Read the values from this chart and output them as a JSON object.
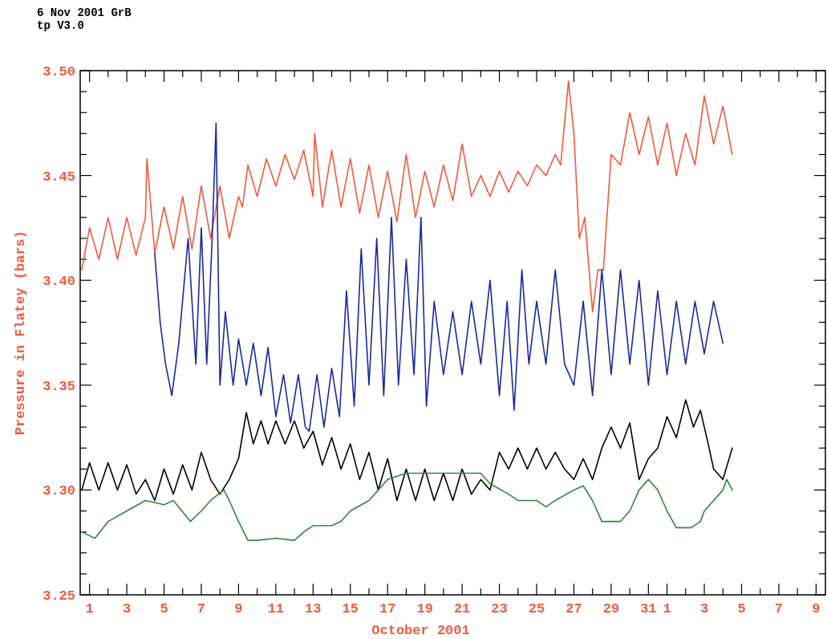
{
  "chart_data": {
    "type": "line",
    "annotations": [
      "6 Nov 2001 GrB",
      "tp V3.0"
    ],
    "xlabel": "October 2001",
    "ylabel": "Pressure in Flatey (bars)",
    "xlim": [
      "2001-09-30T12:00",
      "2001-11-09T12:00"
    ],
    "ylim": [
      3.25,
      3.5
    ],
    "xticks": [
      {
        "value": "2001-10-01",
        "label": "1"
      },
      {
        "value": "2001-10-02",
        "label": null
      },
      {
        "value": "2001-10-03",
        "label": "3"
      },
      {
        "value": "2001-10-04",
        "label": null
      },
      {
        "value": "2001-10-05",
        "label": "5"
      },
      {
        "value": "2001-10-06",
        "label": null
      },
      {
        "value": "2001-10-07",
        "label": "7"
      },
      {
        "value": "2001-10-08",
        "label": null
      },
      {
        "value": "2001-10-09",
        "label": "9"
      },
      {
        "value": "2001-10-10",
        "label": null
      },
      {
        "value": "2001-10-11",
        "label": "11"
      },
      {
        "value": "2001-10-12",
        "label": null
      },
      {
        "value": "2001-10-13",
        "label": "13"
      },
      {
        "value": "2001-10-14",
        "label": null
      },
      {
        "value": "2001-10-15",
        "label": "15"
      },
      {
        "value": "2001-10-16",
        "label": null
      },
      {
        "value": "2001-10-17",
        "label": "17"
      },
      {
        "value": "2001-10-18",
        "label": null
      },
      {
        "value": "2001-10-19",
        "label": "19"
      },
      {
        "value": "2001-10-20",
        "label": null
      },
      {
        "value": "2001-10-21",
        "label": "21"
      },
      {
        "value": "2001-10-22",
        "label": null
      },
      {
        "value": "2001-10-23",
        "label": "23"
      },
      {
        "value": "2001-10-24",
        "label": null
      },
      {
        "value": "2001-10-25",
        "label": "25"
      },
      {
        "value": "2001-10-26",
        "label": null
      },
      {
        "value": "2001-10-27",
        "label": "27"
      },
      {
        "value": "2001-10-28",
        "label": null
      },
      {
        "value": "2001-10-29",
        "label": "29"
      },
      {
        "value": "2001-10-30",
        "label": null
      },
      {
        "value": "2001-10-31",
        "label": "31"
      },
      {
        "value": "2001-11-01",
        "label": "1"
      },
      {
        "value": "2001-11-02",
        "label": null
      },
      {
        "value": "2001-11-03",
        "label": "3"
      },
      {
        "value": "2001-11-04",
        "label": null
      },
      {
        "value": "2001-11-05",
        "label": "5"
      },
      {
        "value": "2001-11-06",
        "label": null
      },
      {
        "value": "2001-11-07",
        "label": "7"
      },
      {
        "value": "2001-11-08",
        "label": null
      },
      {
        "value": "2001-11-09",
        "label": "9"
      }
    ],
    "yticks": [
      {
        "value": 3.25,
        "label": "3.25"
      },
      {
        "value": 3.26,
        "label": null
      },
      {
        "value": 3.27,
        "label": null
      },
      {
        "value": 3.28,
        "label": null
      },
      {
        "value": 3.29,
        "label": null
      },
      {
        "value": 3.3,
        "label": "3.30"
      },
      {
        "value": 3.31,
        "label": null
      },
      {
        "value": 3.32,
        "label": null
      },
      {
        "value": 3.33,
        "label": null
      },
      {
        "value": 3.34,
        "label": null
      },
      {
        "value": 3.35,
        "label": "3.35"
      },
      {
        "value": 3.36,
        "label": null
      },
      {
        "value": 3.37,
        "label": null
      },
      {
        "value": 3.38,
        "label": null
      },
      {
        "value": 3.39,
        "label": null
      },
      {
        "value": 3.4,
        "label": "3.40"
      },
      {
        "value": 3.41,
        "label": null
      },
      {
        "value": 3.42,
        "label": null
      },
      {
        "value": 3.43,
        "label": null
      },
      {
        "value": 3.44,
        "label": null
      },
      {
        "value": 3.45,
        "label": "3.45"
      },
      {
        "value": 3.46,
        "label": null
      },
      {
        "value": 3.47,
        "label": null
      },
      {
        "value": 3.48,
        "label": null
      },
      {
        "value": 3.49,
        "label": null
      },
      {
        "value": 3.5,
        "label": "3.50"
      }
    ],
    "grid": false,
    "marker": "none",
    "line_style": "solid",
    "series": [
      {
        "color": "#f05a3c",
        "x": [
          "2001-09-30T14:00",
          "2001-10-01T00:00",
          "2001-10-01T12:00",
          "2001-10-02T00:00",
          "2001-10-02T12:00",
          "2001-10-03T00:00",
          "2001-10-03T12:00",
          "2001-10-04T00:00",
          "2001-10-04T02:00",
          "2001-10-04T12:00",
          "2001-10-05T00:00",
          "2001-10-05T12:00",
          "2001-10-06T00:00",
          "2001-10-06T12:00",
          "2001-10-07T00:00",
          "2001-10-07T12:00",
          "2001-10-08T00:00",
          "2001-10-08T12:00",
          "2001-10-09T00:00",
          "2001-10-09T05:00",
          "2001-10-09T12:00",
          "2001-10-10T00:00",
          "2001-10-10T12:00",
          "2001-10-11T00:00",
          "2001-10-11T12:00",
          "2001-10-12T00:00",
          "2001-10-12T12:00",
          "2001-10-13T00:00",
          "2001-10-13T02:00",
          "2001-10-13T12:00",
          "2001-10-14T00:00",
          "2001-10-14T12:00",
          "2001-10-15T00:00",
          "2001-10-15T12:00",
          "2001-10-16T00:00",
          "2001-10-16T12:00",
          "2001-10-17T00:00",
          "2001-10-17T12:00",
          "2001-10-18T00:00",
          "2001-10-18T12:00",
          "2001-10-19T00:00",
          "2001-10-19T12:00",
          "2001-10-20T00:00",
          "2001-10-20T12:00",
          "2001-10-21T00:00",
          "2001-10-21T12:00",
          "2001-10-22T00:00",
          "2001-10-22T12:00",
          "2001-10-23T00:00",
          "2001-10-23T12:00",
          "2001-10-24T00:00",
          "2001-10-24T12:00",
          "2001-10-25T00:00",
          "2001-10-25T12:00",
          "2001-10-26T00:00",
          "2001-10-26T07:00",
          "2001-10-26T17:00",
          "2001-10-27T00:00",
          "2001-10-27T07:00",
          "2001-10-27T14:00",
          "2001-10-28T00:00",
          "2001-10-28T07:00",
          "2001-10-28T14:00",
          "2001-10-29T00:00",
          "2001-10-29T12:00",
          "2001-10-30T00:00",
          "2001-10-30T12:00",
          "2001-10-31T00:00",
          "2001-10-31T12:00",
          "2001-11-01T00:00",
          "2001-11-01T12:00",
          "2001-11-02T00:00",
          "2001-11-02T12:00",
          "2001-11-03T00:00",
          "2001-11-03T12:00",
          "2001-11-04T00:00",
          "2001-11-04T12:00"
        ],
        "values": [
          3.405,
          3.425,
          3.41,
          3.43,
          3.41,
          3.43,
          3.412,
          3.43,
          3.458,
          3.413,
          3.435,
          3.415,
          3.44,
          3.415,
          3.445,
          3.42,
          3.445,
          3.42,
          3.44,
          3.435,
          3.455,
          3.44,
          3.458,
          3.445,
          3.46,
          3.448,
          3.462,
          3.44,
          3.47,
          3.435,
          3.462,
          3.435,
          3.458,
          3.432,
          3.455,
          3.43,
          3.452,
          3.428,
          3.46,
          3.43,
          3.452,
          3.435,
          3.455,
          3.438,
          3.465,
          3.44,
          3.45,
          3.44,
          3.452,
          3.442,
          3.452,
          3.445,
          3.455,
          3.45,
          3.46,
          3.455,
          3.495,
          3.47,
          3.42,
          3.43,
          3.385,
          3.405,
          3.405,
          3.46,
          3.455,
          3.48,
          3.46,
          3.478,
          3.455,
          3.475,
          3.45,
          3.47,
          3.455,
          3.488,
          3.465,
          3.483,
          3.46
        ]
      },
      {
        "color": "#1a2a9a",
        "x": [
          "2001-10-04T12:00",
          "2001-10-04T19:00",
          "2001-10-05T02:00",
          "2001-10-05T10:00",
          "2001-10-05T19:00",
          "2001-10-06T07:00",
          "2001-10-06T17:00",
          "2001-10-07T00:00",
          "2001-10-07T07:00",
          "2001-10-07T14:00",
          "2001-10-07T19:00",
          "2001-10-08T00:00",
          "2001-10-08T07:00",
          "2001-10-08T17:00",
          "2001-10-09T00:00",
          "2001-10-09T10:00",
          "2001-10-09T19:00",
          "2001-10-10T05:00",
          "2001-10-10T14:00",
          "2001-10-11T00:00",
          "2001-10-11T10:00",
          "2001-10-11T19:00",
          "2001-10-12T05:00",
          "2001-10-12T14:00",
          "2001-10-12T19:00",
          "2001-10-13T05:00",
          "2001-10-13T14:00",
          "2001-10-14T00:00",
          "2001-10-14T10:00",
          "2001-10-14T19:00",
          "2001-10-15T05:00",
          "2001-10-15T14:00",
          "2001-10-16T00:00",
          "2001-10-16T10:00",
          "2001-10-16T19:00",
          "2001-10-17T05:00",
          "2001-10-17T14:00",
          "2001-10-18T00:00",
          "2001-10-18T10:00",
          "2001-10-18T19:00",
          "2001-10-19T02:00",
          "2001-10-19T12:00",
          "2001-10-20T00:00",
          "2001-10-20T12:00",
          "2001-10-21T00:00",
          "2001-10-21T12:00",
          "2001-10-22T00:00",
          "2001-10-22T12:00",
          "2001-10-23T00:00",
          "2001-10-23T10:00",
          "2001-10-23T19:00",
          "2001-10-24T05:00",
          "2001-10-24T14:00",
          "2001-10-25T00:00",
          "2001-10-25T12:00",
          "2001-10-26T00:00",
          "2001-10-26T12:00",
          "2001-10-27T00:00",
          "2001-10-27T12:00",
          "2001-10-28T00:00",
          "2001-10-28T12:00",
          "2001-10-29T00:00",
          "2001-10-29T12:00",
          "2001-10-30T00:00",
          "2001-10-30T12:00",
          "2001-10-31T00:00",
          "2001-10-31T12:00",
          "2001-11-01T00:00",
          "2001-11-01T12:00",
          "2001-11-02T00:00",
          "2001-11-02T12:00",
          "2001-11-03T00:00",
          "2001-11-03T12:00",
          "2001-11-04T00:00"
        ],
        "values": [
          3.413,
          3.38,
          3.36,
          3.345,
          3.37,
          3.42,
          3.36,
          3.425,
          3.36,
          3.42,
          3.475,
          3.35,
          3.385,
          3.35,
          3.372,
          3.35,
          3.37,
          3.345,
          3.368,
          3.335,
          3.355,
          3.332,
          3.355,
          3.33,
          3.328,
          3.355,
          3.33,
          3.358,
          3.335,
          3.395,
          3.34,
          3.415,
          3.35,
          3.42,
          3.345,
          3.43,
          3.35,
          3.41,
          3.355,
          3.43,
          3.34,
          3.39,
          3.355,
          3.385,
          3.355,
          3.39,
          3.36,
          3.4,
          3.345,
          3.39,
          3.338,
          3.405,
          3.36,
          3.39,
          3.36,
          3.405,
          3.36,
          3.35,
          3.39,
          3.345,
          3.405,
          3.355,
          3.405,
          3.36,
          3.4,
          3.35,
          3.395,
          3.355,
          3.39,
          3.36,
          3.39,
          3.365,
          3.39,
          3.37
        ]
      },
      {
        "color": "#000000",
        "x": [
          "2001-09-30T14:00",
          "2001-10-01T00:00",
          "2001-10-01T12:00",
          "2001-10-02T00:00",
          "2001-10-02T12:00",
          "2001-10-03T00:00",
          "2001-10-03T12:00",
          "2001-10-04T00:00",
          "2001-10-04T12:00",
          "2001-10-05T00:00",
          "2001-10-05T12:00",
          "2001-10-06T00:00",
          "2001-10-06T12:00",
          "2001-10-07T00:00",
          "2001-10-07T12:00",
          "2001-10-08T00:00",
          "2001-10-08T12:00",
          "2001-10-09T00:00",
          "2001-10-09T10:00",
          "2001-10-09T19:00",
          "2001-10-10T05:00",
          "2001-10-10T14:00",
          "2001-10-11T00:00",
          "2001-10-11T12:00",
          "2001-10-12T00:00",
          "2001-10-12T12:00",
          "2001-10-13T00:00",
          "2001-10-13T12:00",
          "2001-10-14T00:00",
          "2001-10-14T12:00",
          "2001-10-15T00:00",
          "2001-10-15T12:00",
          "2001-10-16T00:00",
          "2001-10-16T12:00",
          "2001-10-17T00:00",
          "2001-10-17T12:00",
          "2001-10-18T00:00",
          "2001-10-18T12:00",
          "2001-10-19T00:00",
          "2001-10-19T12:00",
          "2001-10-20T00:00",
          "2001-10-20T12:00",
          "2001-10-21T00:00",
          "2001-10-21T12:00",
          "2001-10-22T00:00",
          "2001-10-22T12:00",
          "2001-10-23T00:00",
          "2001-10-23T12:00",
          "2001-10-24T00:00",
          "2001-10-24T12:00",
          "2001-10-25T00:00",
          "2001-10-25T12:00",
          "2001-10-26T00:00",
          "2001-10-26T12:00",
          "2001-10-27T00:00",
          "2001-10-27T12:00",
          "2001-10-28T00:00",
          "2001-10-28T12:00",
          "2001-10-29T00:00",
          "2001-10-29T12:00",
          "2001-10-30T00:00",
          "2001-10-30T12:00",
          "2001-10-31T00:00",
          "2001-10-31T12:00",
          "2001-11-01T00:00",
          "2001-11-01T12:00",
          "2001-11-02T00:00",
          "2001-11-02T10:00",
          "2001-11-02T19:00",
          "2001-11-03T05:00",
          "2001-11-03T12:00",
          "2001-11-04T00:00",
          "2001-11-04T12:00"
        ],
        "values": [
          3.3,
          3.313,
          3.3,
          3.313,
          3.3,
          3.312,
          3.298,
          3.305,
          3.295,
          3.31,
          3.298,
          3.312,
          3.3,
          3.318,
          3.305,
          3.298,
          3.305,
          3.315,
          3.337,
          3.322,
          3.333,
          3.322,
          3.333,
          3.322,
          3.333,
          3.32,
          3.328,
          3.312,
          3.325,
          3.31,
          3.322,
          3.305,
          3.318,
          3.3,
          3.315,
          3.295,
          3.31,
          3.295,
          3.31,
          3.295,
          3.308,
          3.295,
          3.31,
          3.298,
          3.305,
          3.3,
          3.318,
          3.31,
          3.32,
          3.31,
          3.32,
          3.31,
          3.318,
          3.31,
          3.305,
          3.315,
          3.305,
          3.32,
          3.33,
          3.32,
          3.332,
          3.305,
          3.315,
          3.32,
          3.335,
          3.325,
          3.343,
          3.33,
          3.338,
          3.322,
          3.31,
          3.305,
          3.32
        ]
      },
      {
        "color": "#2a8a3a",
        "x": [
          "2001-09-30T14:00",
          "2001-10-01T07:00",
          "2001-10-02T00:00",
          "2001-10-03T00:00",
          "2001-10-04T00:00",
          "2001-10-05T00:00",
          "2001-10-05T12:00",
          "2001-10-06T10:00",
          "2001-10-07T00:00",
          "2001-10-07T12:00",
          "2001-10-08T05:00",
          "2001-10-08T12:00",
          "2001-10-09T00:00",
          "2001-10-09T12:00",
          "2001-10-10T00:00",
          "2001-10-11T00:00",
          "2001-10-12T00:00",
          "2001-10-12T12:00",
          "2001-10-13T00:00",
          "2001-10-14T00:00",
          "2001-10-14T12:00",
          "2001-10-15T00:00",
          "2001-10-16T00:00",
          "2001-10-16T12:00",
          "2001-10-17T00:00",
          "2001-10-18T00:00",
          "2001-10-19T00:00",
          "2001-10-20T00:00",
          "2001-10-21T00:00",
          "2001-10-22T00:00",
          "2001-10-22T12:00",
          "2001-10-23T12:00",
          "2001-10-24T00:00",
          "2001-10-25T00:00",
          "2001-10-25T12:00",
          "2001-10-26T00:00",
          "2001-10-27T00:00",
          "2001-10-27T12:00",
          "2001-10-28T00:00",
          "2001-10-28T12:00",
          "2001-10-29T12:00",
          "2001-10-30T00:00",
          "2001-10-30T12:00",
          "2001-10-31T00:00",
          "2001-10-31T12:00",
          "2001-11-01T00:00",
          "2001-11-01T12:00",
          "2001-11-02T07:00",
          "2001-11-02T19:00",
          "2001-11-03T00:00",
          "2001-11-03T12:00",
          "2001-11-04T00:00",
          "2001-11-04T05:00",
          "2001-11-04T12:00"
        ],
        "values": [
          3.28,
          3.277,
          3.285,
          3.29,
          3.295,
          3.293,
          3.295,
          3.285,
          3.29,
          3.295,
          3.3,
          3.295,
          3.285,
          3.276,
          3.276,
          3.277,
          3.276,
          3.28,
          3.283,
          3.283,
          3.285,
          3.29,
          3.295,
          3.3,
          3.305,
          3.308,
          3.308,
          3.308,
          3.308,
          3.308,
          3.303,
          3.298,
          3.295,
          3.295,
          3.292,
          3.295,
          3.3,
          3.302,
          3.295,
          3.285,
          3.285,
          3.29,
          3.3,
          3.305,
          3.3,
          3.29,
          3.282,
          3.282,
          3.285,
          3.29,
          3.295,
          3.3,
          3.305,
          3.3
        ]
      }
    ]
  }
}
